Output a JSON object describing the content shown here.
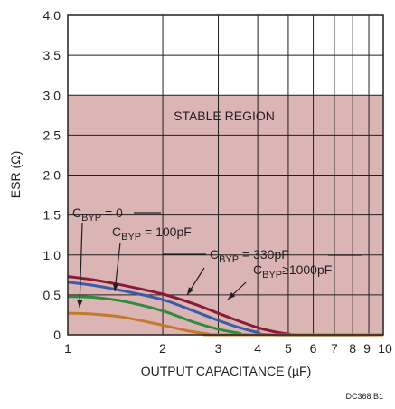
{
  "chart_data": {
    "type": "line",
    "title": "",
    "xlabel": "OUTPUT CAPACITANCE (µF)",
    "ylabel": "ESR (Ω)",
    "x_scale": "log",
    "xlim": [
      1,
      10
    ],
    "ylim": [
      0,
      4.0
    ],
    "grid": true,
    "x_ticks": [
      1,
      2,
      3,
      4,
      5,
      6,
      7,
      8,
      9,
      10
    ],
    "x_tick_labels": [
      "1",
      "2",
      "3",
      "4",
      "5",
      "6",
      "7",
      "8",
      "9",
      "10"
    ],
    "y_ticks": [
      0,
      0.5,
      1.0,
      1.5,
      2.0,
      2.5,
      3.0,
      3.5,
      4.0
    ],
    "y_tick_labels": [
      "0",
      "0.5",
      "1.0",
      "1.5",
      "2.0",
      "2.5",
      "3.0",
      "3.5",
      "4.0"
    ],
    "region": {
      "label": "STABLE REGION",
      "x_range": [
        1,
        10
      ],
      "y_range": [
        0,
        3.0
      ],
      "color": "#dbb4b4"
    },
    "series": [
      {
        "color": "#8b1a3a",
        "points": [
          [
            1,
            0.73
          ],
          [
            1.2,
            0.69
          ],
          [
            1.5,
            0.62
          ],
          [
            2.0,
            0.51
          ],
          [
            2.5,
            0.39
          ],
          [
            3.0,
            0.27
          ],
          [
            3.5,
            0.17
          ],
          [
            4.0,
            0.09
          ],
          [
            4.5,
            0.04
          ],
          [
            5.0,
            0.01
          ],
          [
            5.5,
            0.0
          ],
          [
            10,
            0.0
          ]
        ]
      },
      {
        "color": "#3a5da8",
        "points": [
          [
            1,
            0.66
          ],
          [
            1.2,
            0.62
          ],
          [
            1.5,
            0.55
          ],
          [
            2.0,
            0.44
          ],
          [
            2.5,
            0.3
          ],
          [
            3.0,
            0.18
          ],
          [
            3.5,
            0.09
          ],
          [
            4.0,
            0.03
          ],
          [
            4.5,
            0.0
          ],
          [
            10,
            0.0
          ]
        ]
      },
      {
        "color": "#2e8b3e",
        "points": [
          [
            1,
            0.48
          ],
          [
            1.2,
            0.47
          ],
          [
            1.5,
            0.42
          ],
          [
            2.0,
            0.3
          ],
          [
            2.5,
            0.16
          ],
          [
            3.0,
            0.07
          ],
          [
            3.5,
            0.02
          ],
          [
            3.8,
            0.0
          ],
          [
            10,
            0.0
          ]
        ]
      },
      {
        "color": "#c47a2c",
        "points": [
          [
            1,
            0.27
          ],
          [
            1.2,
            0.26
          ],
          [
            1.5,
            0.22
          ],
          [
            2.0,
            0.12
          ],
          [
            2.4,
            0.05
          ],
          [
            2.8,
            0.01
          ],
          [
            3.0,
            0.0
          ],
          [
            10,
            0.0
          ]
        ]
      }
    ],
    "annotations": {
      "cbyp_0": {
        "main": "C",
        "sub": "BYP",
        "rest": " = 0"
      },
      "cbyp_100": {
        "main": "C",
        "sub": "BYP",
        "rest": " = 100pF"
      },
      "cbyp_330": {
        "main": "C",
        "sub": "BYP",
        "rest": " = 330pF"
      },
      "cbyp_1000": {
        "main": "C",
        "sub": "BYP",
        "rest": "≥1000pF"
      }
    },
    "figure_ref": "DC368 B1",
    "colors": {
      "grid": "#231f20",
      "region": "#dbb4b4",
      "text": "#231f20"
    }
  }
}
